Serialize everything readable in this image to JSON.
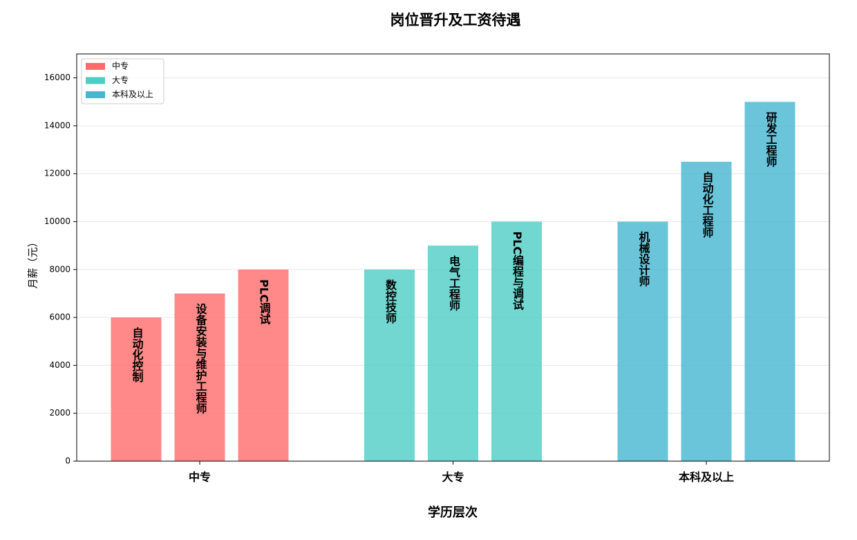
{
  "chart_data": {
    "type": "grouped-bar",
    "title": "岗位晋升及工资待遇",
    "x_label": "学历层次",
    "y_label": "月薪（元）",
    "categories": [
      "中专",
      "大专",
      "本科及以上"
    ],
    "series": [
      {
        "name": "中专",
        "color": "#ff6b6b",
        "values": [
          6000,
          7000,
          8000
        ],
        "bar_labels": [
          "自动化控制",
          "设备安装与维护工程师",
          "PLC调试"
        ]
      },
      {
        "name": "大专",
        "color": "#4ecdc4",
        "values": [
          8000,
          9000,
          10000
        ],
        "bar_labels": [
          "数控技师",
          "电气工程师",
          "PLC编程与调试"
        ]
      },
      {
        "name": "本科及以上",
        "color": "#45b7d1",
        "values": [
          10000,
          12500,
          15000
        ],
        "bar_labels": [
          "机械设计师",
          "自动化工程师",
          "研发工程师"
        ]
      }
    ],
    "ylim": [
      0,
      17000
    ],
    "yticks": [
      0,
      2000,
      4000,
      6000,
      8000,
      10000,
      12000,
      14000,
      16000
    ],
    "grid": true,
    "legend": "upper-left"
  }
}
